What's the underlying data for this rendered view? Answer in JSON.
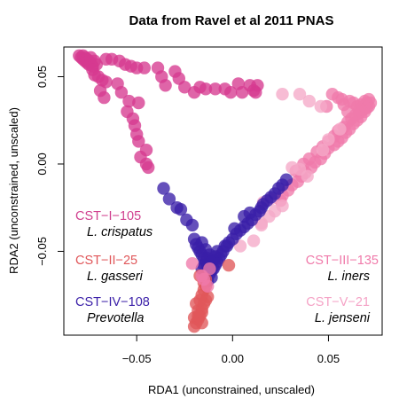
{
  "chart_data": {
    "type": "scatter",
    "title": "Data from Ravel et al 2011 PNAS",
    "xlabel": "RDA1 (unconstrained, unscaled)",
    "ylabel": "RDA2 (unconstrained, unscaled)",
    "xlim": [
      -0.088,
      0.078
    ],
    "ylim": [
      -0.098,
      0.067
    ],
    "xticks": [
      -0.05,
      0.0,
      0.05
    ],
    "xtick_labels": [
      "−0.05",
      "0.00",
      "0.05"
    ],
    "yticks": [
      -0.05,
      0.0,
      0.05
    ],
    "ytick_labels": [
      "−0.05",
      "0.00",
      "0.05"
    ],
    "grid": false,
    "legend": "none",
    "annotations": [
      {
        "id": "cst1",
        "text": "CST−I−105",
        "sub": "L. crispatus",
        "color": "#d03f8e"
      },
      {
        "id": "cst2",
        "text": "CST−II−25",
        "sub": "L. gasseri",
        "color": "#e0575a"
      },
      {
        "id": "cst4",
        "text": "CST−IV−108",
        "sub": "Prevotella",
        "color": "#3a1fa8"
      },
      {
        "id": "cst3",
        "text": "CST−III−135",
        "sub": "L. iners",
        "color": "#f07aaa"
      },
      {
        "id": "cst5",
        "text": "CST−V−21",
        "sub": "L. jenseni",
        "color": "#f5a3c6"
      }
    ],
    "series": [
      {
        "id": "cst1",
        "color": "#d63a8f",
        "points": [
          [
            -0.08,
            0.062
          ],
          [
            -0.079,
            0.061
          ],
          [
            -0.078,
            0.06
          ],
          [
            -0.077,
            0.059
          ],
          [
            -0.076,
            0.058
          ],
          [
            -0.075,
            0.057
          ],
          [
            -0.078,
            0.062
          ],
          [
            -0.077,
            0.061
          ],
          [
            -0.076,
            0.06
          ],
          [
            -0.075,
            0.059
          ],
          [
            -0.074,
            0.058
          ],
          [
            -0.073,
            0.056
          ],
          [
            -0.074,
            0.061
          ],
          [
            -0.072,
            0.059
          ],
          [
            -0.071,
            0.057
          ],
          [
            -0.073,
            0.054
          ],
          [
            -0.072,
            0.051
          ],
          [
            -0.07,
            0.05
          ],
          [
            -0.068,
            0.048
          ],
          [
            -0.066,
            0.047
          ],
          [
            -0.069,
            0.042
          ],
          [
            -0.067,
            0.038
          ],
          [
            -0.066,
            0.06
          ],
          [
            -0.063,
            0.06
          ],
          [
            -0.059,
            0.059
          ],
          [
            -0.056,
            0.057
          ],
          [
            -0.053,
            0.056
          ],
          [
            -0.05,
            0.055
          ],
          [
            -0.046,
            0.055
          ],
          [
            -0.06,
            0.046
          ],
          [
            -0.058,
            0.041
          ],
          [
            -0.054,
            0.036
          ],
          [
            -0.049,
            0.035
          ],
          [
            -0.055,
            0.03
          ],
          [
            -0.052,
            0.026
          ],
          [
            -0.051,
            0.022
          ],
          [
            -0.05,
            0.017
          ],
          [
            -0.049,
            0.013
          ],
          [
            -0.045,
            0.008
          ],
          [
            -0.048,
            0.004
          ],
          [
            -0.045,
            0.0
          ],
          [
            -0.044,
            -0.002
          ],
          [
            -0.039,
            0.055
          ],
          [
            -0.037,
            0.05
          ],
          [
            -0.035,
            0.045
          ],
          [
            -0.03,
            0.053
          ],
          [
            -0.028,
            0.049
          ],
          [
            -0.025,
            0.044
          ],
          [
            -0.02,
            0.041
          ],
          [
            -0.017,
            0.044
          ],
          [
            -0.014,
            0.043
          ],
          [
            -0.009,
            0.043
          ],
          [
            -0.004,
            0.043
          ],
          [
            -0.001,
            0.041
          ],
          [
            0.003,
            0.046
          ],
          [
            0.005,
            0.041
          ],
          [
            0.009,
            0.045
          ],
          [
            0.011,
            0.042
          ],
          [
            0.012,
            0.041
          ],
          [
            0.013,
            0.045
          ]
        ]
      },
      {
        "id": "cst3",
        "color": "#f07aaa",
        "points": [
          [
            0.052,
            0.04
          ],
          [
            0.055,
            0.038
          ],
          [
            0.057,
            0.037
          ],
          [
            0.058,
            0.034
          ],
          [
            0.061,
            0.036
          ],
          [
            0.063,
            0.035
          ],
          [
            0.065,
            0.033
          ],
          [
            0.067,
            0.034
          ],
          [
            0.069,
            0.036
          ],
          [
            0.07,
            0.035
          ],
          [
            0.071,
            0.033
          ],
          [
            0.069,
            0.03
          ],
          [
            0.067,
            0.027
          ],
          [
            0.065,
            0.025
          ],
          [
            0.063,
            0.023
          ],
          [
            0.061,
            0.02
          ],
          [
            0.059,
            0.018
          ],
          [
            0.057,
            0.015
          ],
          [
            0.055,
            0.013
          ],
          [
            0.053,
            0.011
          ],
          [
            0.05,
            0.009
          ],
          [
            0.048,
            0.006
          ],
          [
            0.046,
            0.003
          ],
          [
            0.043,
            0.001
          ],
          [
            0.041,
            -0.002
          ],
          [
            0.038,
            -0.005
          ],
          [
            0.036,
            -0.007
          ],
          [
            0.034,
            -0.01
          ],
          [
            0.031,
            -0.012
          ],
          [
            0.029,
            -0.015
          ],
          [
            0.026,
            -0.018
          ],
          [
            0.025,
            -0.021
          ],
          [
            0.068,
            0.031
          ],
          [
            0.066,
            0.029
          ],
          [
            0.064,
            0.028
          ],
          [
            0.062,
            0.026
          ],
          [
            0.06,
            0.024
          ],
          [
            0.058,
            0.021
          ],
          [
            0.055,
            0.019
          ],
          [
            0.053,
            0.016
          ],
          [
            0.05,
            0.013
          ],
          [
            0.047,
            0.01
          ],
          [
            0.044,
            0.007
          ],
          [
            0.04,
            0.003
          ],
          [
            0.037,
            0.0
          ],
          [
            0.033,
            -0.004
          ],
          [
            0.071,
            0.037
          ],
          [
            0.072,
            0.035
          ],
          [
            0.07,
            0.032
          ],
          [
            0.066,
            0.031
          ],
          [
            0.06,
            0.03
          ],
          [
            0.049,
            0.033
          ]
        ]
      },
      {
        "id": "cst5",
        "color": "#f5a9c8",
        "points": [
          [
            0.026,
            0.04
          ],
          [
            0.035,
            0.04
          ],
          [
            0.04,
            0.036
          ],
          [
            0.046,
            0.033
          ],
          [
            0.035,
            -0.003
          ],
          [
            0.026,
            -0.024
          ],
          [
            0.022,
            -0.027
          ],
          [
            0.019,
            -0.03
          ],
          [
            0.015,
            -0.035
          ],
          [
            0.011,
            -0.044
          ],
          [
            0.004,
            -0.047
          ],
          [
            0.015,
            -0.034
          ],
          [
            0.016,
            -0.022
          ],
          [
            0.02,
            -0.02
          ],
          [
            0.031,
            -0.002
          ],
          [
            0.039,
            -0.007
          ],
          [
            0.056,
            0.02
          ],
          [
            0.047,
            0.008
          ],
          [
            0.05,
            0.014
          ]
        ]
      },
      {
        "id": "cst4",
        "color": "#3a1fa8",
        "points": [
          [
            -0.036,
            -0.014
          ],
          [
            -0.033,
            -0.02
          ],
          [
            -0.029,
            -0.025
          ],
          [
            -0.027,
            -0.026
          ],
          [
            -0.024,
            -0.032
          ],
          [
            -0.021,
            -0.035
          ],
          [
            -0.02,
            -0.043
          ],
          [
            -0.019,
            -0.046
          ],
          [
            -0.018,
            -0.048
          ],
          [
            -0.017,
            -0.05
          ],
          [
            -0.016,
            -0.052
          ],
          [
            -0.015,
            -0.054
          ],
          [
            -0.014,
            -0.056
          ],
          [
            -0.013,
            -0.058
          ],
          [
            -0.012,
            -0.059
          ],
          [
            -0.011,
            -0.061
          ],
          [
            -0.01,
            -0.06
          ],
          [
            -0.009,
            -0.058
          ],
          [
            -0.008,
            -0.056
          ],
          [
            -0.007,
            -0.054
          ],
          [
            -0.006,
            -0.052
          ],
          [
            -0.005,
            -0.05
          ],
          [
            -0.004,
            -0.047
          ],
          [
            -0.002,
            -0.045
          ],
          [
            0.0,
            -0.043
          ],
          [
            0.002,
            -0.04
          ],
          [
            0.004,
            -0.038
          ],
          [
            0.006,
            -0.036
          ],
          [
            0.008,
            -0.034
          ],
          [
            0.01,
            -0.032
          ],
          [
            0.012,
            -0.029
          ],
          [
            0.014,
            -0.027
          ],
          [
            0.015,
            -0.025
          ],
          [
            0.016,
            -0.023
          ],
          [
            0.018,
            -0.021
          ],
          [
            0.02,
            -0.019
          ],
          [
            0.022,
            -0.017
          ],
          [
            0.024,
            -0.014
          ],
          [
            0.026,
            -0.012
          ],
          [
            0.028,
            -0.009
          ],
          [
            -0.016,
            -0.045
          ],
          [
            -0.014,
            -0.049
          ],
          [
            -0.012,
            -0.052
          ],
          [
            -0.013,
            -0.054
          ],
          [
            -0.011,
            -0.056
          ],
          [
            -0.01,
            -0.055
          ],
          [
            -0.009,
            -0.053
          ],
          [
            -0.008,
            -0.05
          ],
          [
            -0.015,
            -0.058
          ],
          [
            -0.016,
            -0.06
          ],
          [
            -0.014,
            -0.062
          ],
          [
            -0.012,
            -0.063
          ],
          [
            -0.011,
            -0.065
          ],
          [
            -0.013,
            -0.067
          ],
          [
            -0.003,
            -0.047
          ],
          [
            0.001,
            -0.037
          ],
          [
            0.006,
            -0.03
          ],
          [
            0.009,
            -0.028
          ]
        ]
      },
      {
        "id": "cst2",
        "color": "#e0575a",
        "points": [
          [
            -0.02,
            -0.093
          ],
          [
            -0.019,
            -0.091
          ],
          [
            -0.018,
            -0.089
          ],
          [
            -0.017,
            -0.087
          ],
          [
            -0.016,
            -0.085
          ],
          [
            -0.016,
            -0.083
          ],
          [
            -0.015,
            -0.08
          ],
          [
            -0.014,
            -0.078
          ],
          [
            -0.013,
            -0.076
          ],
          [
            -0.018,
            -0.084
          ],
          [
            -0.019,
            -0.08
          ],
          [
            -0.017,
            -0.078
          ],
          [
            -0.016,
            -0.075
          ],
          [
            -0.015,
            -0.072
          ],
          [
            -0.014,
            -0.07
          ],
          [
            -0.015,
            -0.068
          ],
          [
            -0.014,
            -0.066
          ],
          [
            -0.017,
            -0.064
          ],
          [
            -0.02,
            -0.088
          ],
          [
            -0.002,
            -0.058
          ],
          [
            -0.016,
            -0.091
          ],
          [
            -0.018,
            -0.087
          ]
        ]
      },
      {
        "id": "cst3b",
        "color": "#f07aaa",
        "points": [
          [
            -0.021,
            -0.057
          ],
          [
            -0.016,
            -0.064
          ],
          [
            -0.015,
            -0.066
          ],
          [
            -0.013,
            -0.07
          ],
          [
            -0.012,
            -0.06
          ]
        ]
      }
    ]
  }
}
